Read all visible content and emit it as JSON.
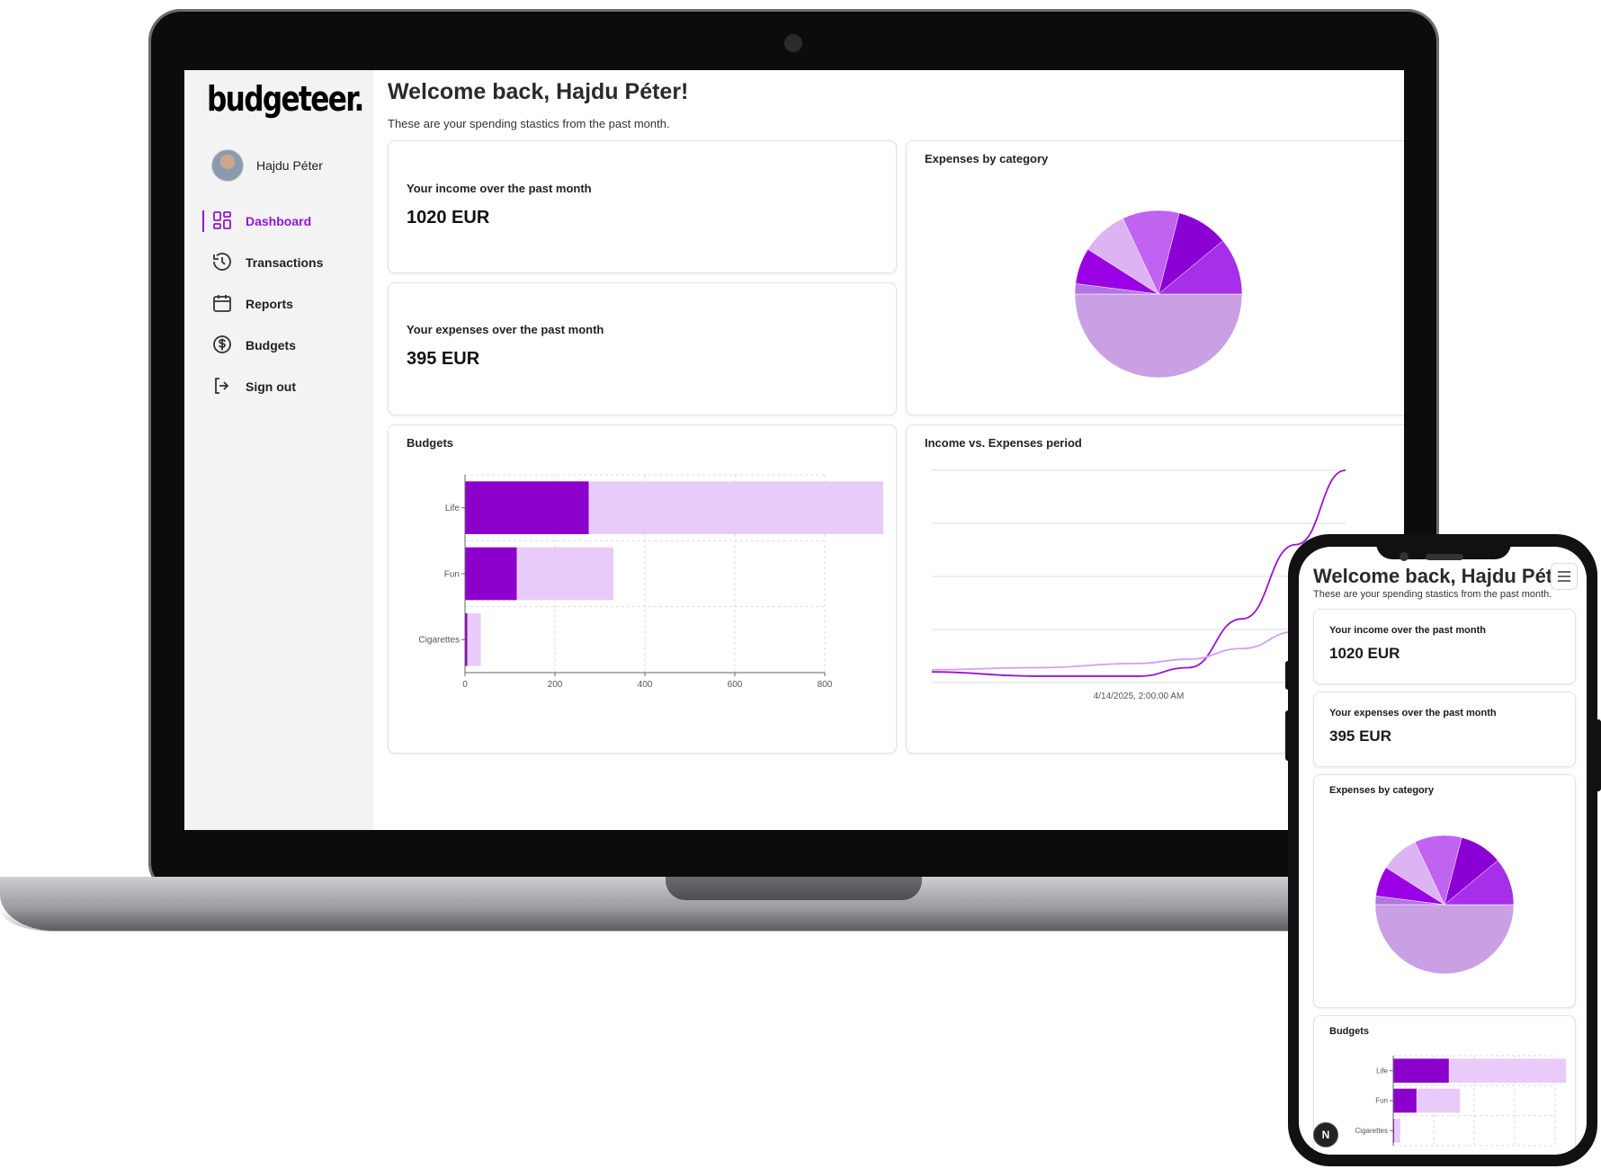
{
  "brand": {
    "logo": "budgeteer.",
    "accent": "#9614d4",
    "accent_light": "#e9cbf9"
  },
  "user": {
    "name": "Hajdu Péter"
  },
  "nav": {
    "items": [
      {
        "label": "Dashboard",
        "icon": "dashboard-grid-icon",
        "active": true
      },
      {
        "label": "Transactions",
        "icon": "history-icon"
      },
      {
        "label": "Reports",
        "icon": "calendar-icon"
      },
      {
        "label": "Budgets",
        "icon": "dollar-circle-icon"
      },
      {
        "label": "Sign out",
        "icon": "sign-out-icon"
      }
    ]
  },
  "dashboard": {
    "welcome": "Welcome back, Hajdu Péter!",
    "subtitle": "These are your spending stastics from the past month.",
    "income": {
      "label": "Your income over the past month",
      "value": "1020 EUR"
    },
    "expenses": {
      "label": "Your expenses over the past month",
      "value": "395 EUR"
    },
    "pie_title": "Expenses by category",
    "budgets_title": "Budgets",
    "line_title": "Income vs. Expenses period"
  },
  "mobile": {
    "welcome": "Welcome back, Hajdu Pét",
    "subtitle": "These are your spending stastics from the past month.",
    "menu_icon": "hamburger-icon",
    "badge": "N"
  },
  "chart_data": [
    {
      "type": "pie",
      "title": "Expenses by category",
      "values": [
        50,
        2,
        7,
        9,
        11,
        10,
        11
      ],
      "colors": [
        "#c9a0e4",
        "#b276e3",
        "#9a00e4",
        "#dcb3f3",
        "#bf63f0",
        "#8a00d4",
        "#a72fe9"
      ]
    },
    {
      "type": "bar",
      "title": "Budgets",
      "categories": [
        "Life",
        "Fun",
        "Cigarettes"
      ],
      "series": [
        {
          "values": [
            275,
            115,
            5
          ],
          "color": "#8c00cc"
        },
        {
          "values": [
            725,
            215,
            30
          ],
          "color": "#e9cbf9"
        }
      ],
      "xlim": [
        0,
        800
      ],
      "xticks": [
        0,
        200,
        400,
        600,
        800
      ],
      "grid": true
    },
    {
      "type": "line",
      "title": "Income vs. Expenses period",
      "x_tick_label": "4/14/2025, 2:00:00 AM",
      "series": [
        {
          "color": "#9614d4",
          "points": [
            [
              0,
              5
            ],
            [
              25,
              3
            ],
            [
              50,
              3
            ],
            [
              62,
              7
            ],
            [
              75,
              30
            ],
            [
              88,
              65
            ],
            [
              100,
              100
            ]
          ]
        },
        {
          "color": "#d59cf2",
          "points": [
            [
              0,
              6
            ],
            [
              25,
              7
            ],
            [
              50,
              9
            ],
            [
              62,
              11
            ],
            [
              75,
              16
            ],
            [
              88,
              24
            ],
            [
              100,
              35
            ]
          ]
        }
      ],
      "ylim": [
        0,
        100
      ],
      "grid": true
    }
  ]
}
